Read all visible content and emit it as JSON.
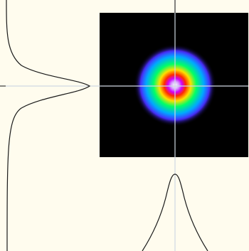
{
  "window": {
    "background_color": "#fffcee"
  },
  "beam_view": {
    "colormap": [
      "#000000",
      "#00a8ff",
      "#00ff66",
      "#ffe000",
      "#ff2a00",
      "#d000ff",
      "#ffffff"
    ],
    "crosshair_color": "#cfd8e3",
    "profile_line_color": "#1a1a1a",
    "background_color": "#000000"
  },
  "icons": {
    "crosshair": "crosshair-icon"
  }
}
